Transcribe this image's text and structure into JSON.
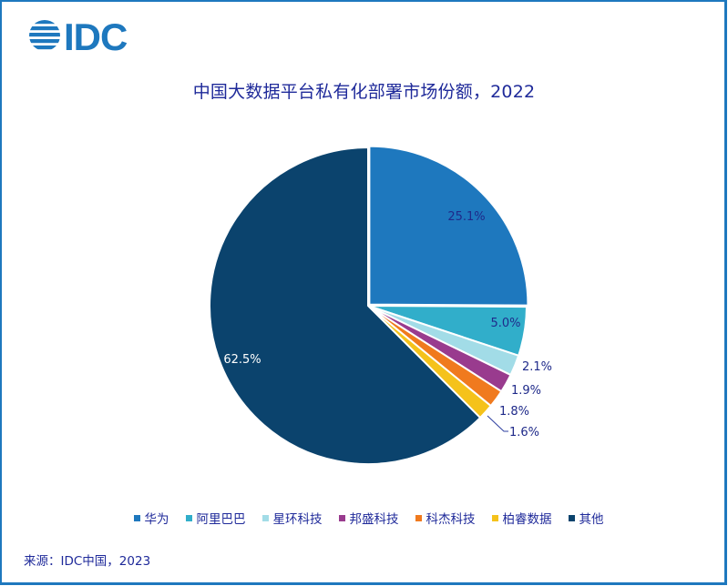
{
  "logo": {
    "text": "IDC",
    "icon": "idc-globe-icon",
    "color": "#1E78BE"
  },
  "title": "中国大数据平台私有化部署市场份额，2022",
  "source": "来源：IDC中国，2023",
  "chart_data": {
    "type": "pie",
    "title": "中国大数据平台私有化部署市场份额，2022",
    "start_angle": "12 o'clock",
    "direction": "clockwise",
    "legend_position": "bottom",
    "unit": "%",
    "slices": [
      {
        "name": "华为",
        "value": 25.1,
        "label": "25.1%",
        "color": "#1E78BE",
        "label_color": "#1F2A8A"
      },
      {
        "name": "阿里巴巴",
        "value": 5.0,
        "label": "5.0%",
        "color": "#31AECA",
        "label_color": "#1F2A8A"
      },
      {
        "name": "星环科技",
        "value": 2.1,
        "label": "2.1%",
        "color": "#A2DCE7",
        "label_color": "#1F2A8A"
      },
      {
        "name": "邦盛科技",
        "value": 1.9,
        "label": "1.9%",
        "color": "#993B8E",
        "label_color": "#1F2A8A"
      },
      {
        "name": "科杰科技",
        "value": 1.8,
        "label": "1.8%",
        "color": "#F07A1E",
        "label_color": "#1F2A8A"
      },
      {
        "name": "柏睿数据",
        "value": 1.6,
        "label": "1.6%",
        "color": "#F5C21B",
        "label_color": "#1F2A8A"
      },
      {
        "name": "其他",
        "value": 62.5,
        "label": "62.5%",
        "color": "#0B436D",
        "label_color": "#ffffff"
      }
    ]
  }
}
